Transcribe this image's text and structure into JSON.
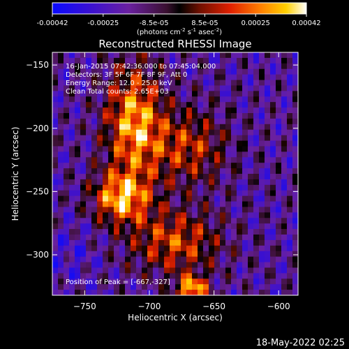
{
  "colorbar": {
    "ticks": [
      "-0.00042",
      "-0.00025",
      "-8.5e-05",
      "8.5e-05",
      "0.00025",
      "0.00042"
    ],
    "units_main": "(photons cm",
    "units_sup1": "-2",
    "units_mid1": " s",
    "units_sup2": "-1",
    "units_mid2": " asec",
    "units_sup3": "-2",
    "units_end": ")"
  },
  "chart_data": {
    "type": "heatmap",
    "title": "Reconstructed RHESSI Image",
    "xlabel": "Heliocentric X (arcsec)",
    "ylabel": "Heliocentric Y (arcsec)",
    "xlim": [
      -775,
      -585
    ],
    "ylim": [
      -332,
      -140
    ],
    "x_ticks": [
      -750,
      -700,
      -650,
      -600
    ],
    "y_ticks": [
      -150,
      -200,
      -250,
      -300
    ],
    "zlim": [
      -0.00042,
      0.00042
    ],
    "colormap": "rainbow-like: blue, purple, red, orange, yellow, white",
    "annotations": [
      "16-Jan-2015 07:42:36.000 to 07:45:04.000",
      "Detectors: 3F 5F 6F 7F 8F 9F, Att 0",
      "Energy Range: 12.0 - 25.0 keV",
      "Clean     Total counts: 2.65E+03"
    ],
    "peak_label": "Position of Peak = [-667,-327]",
    "peak": [
      -667,
      -327
    ]
  },
  "footer": {
    "timestamp": "18-May-2022 02:25"
  }
}
